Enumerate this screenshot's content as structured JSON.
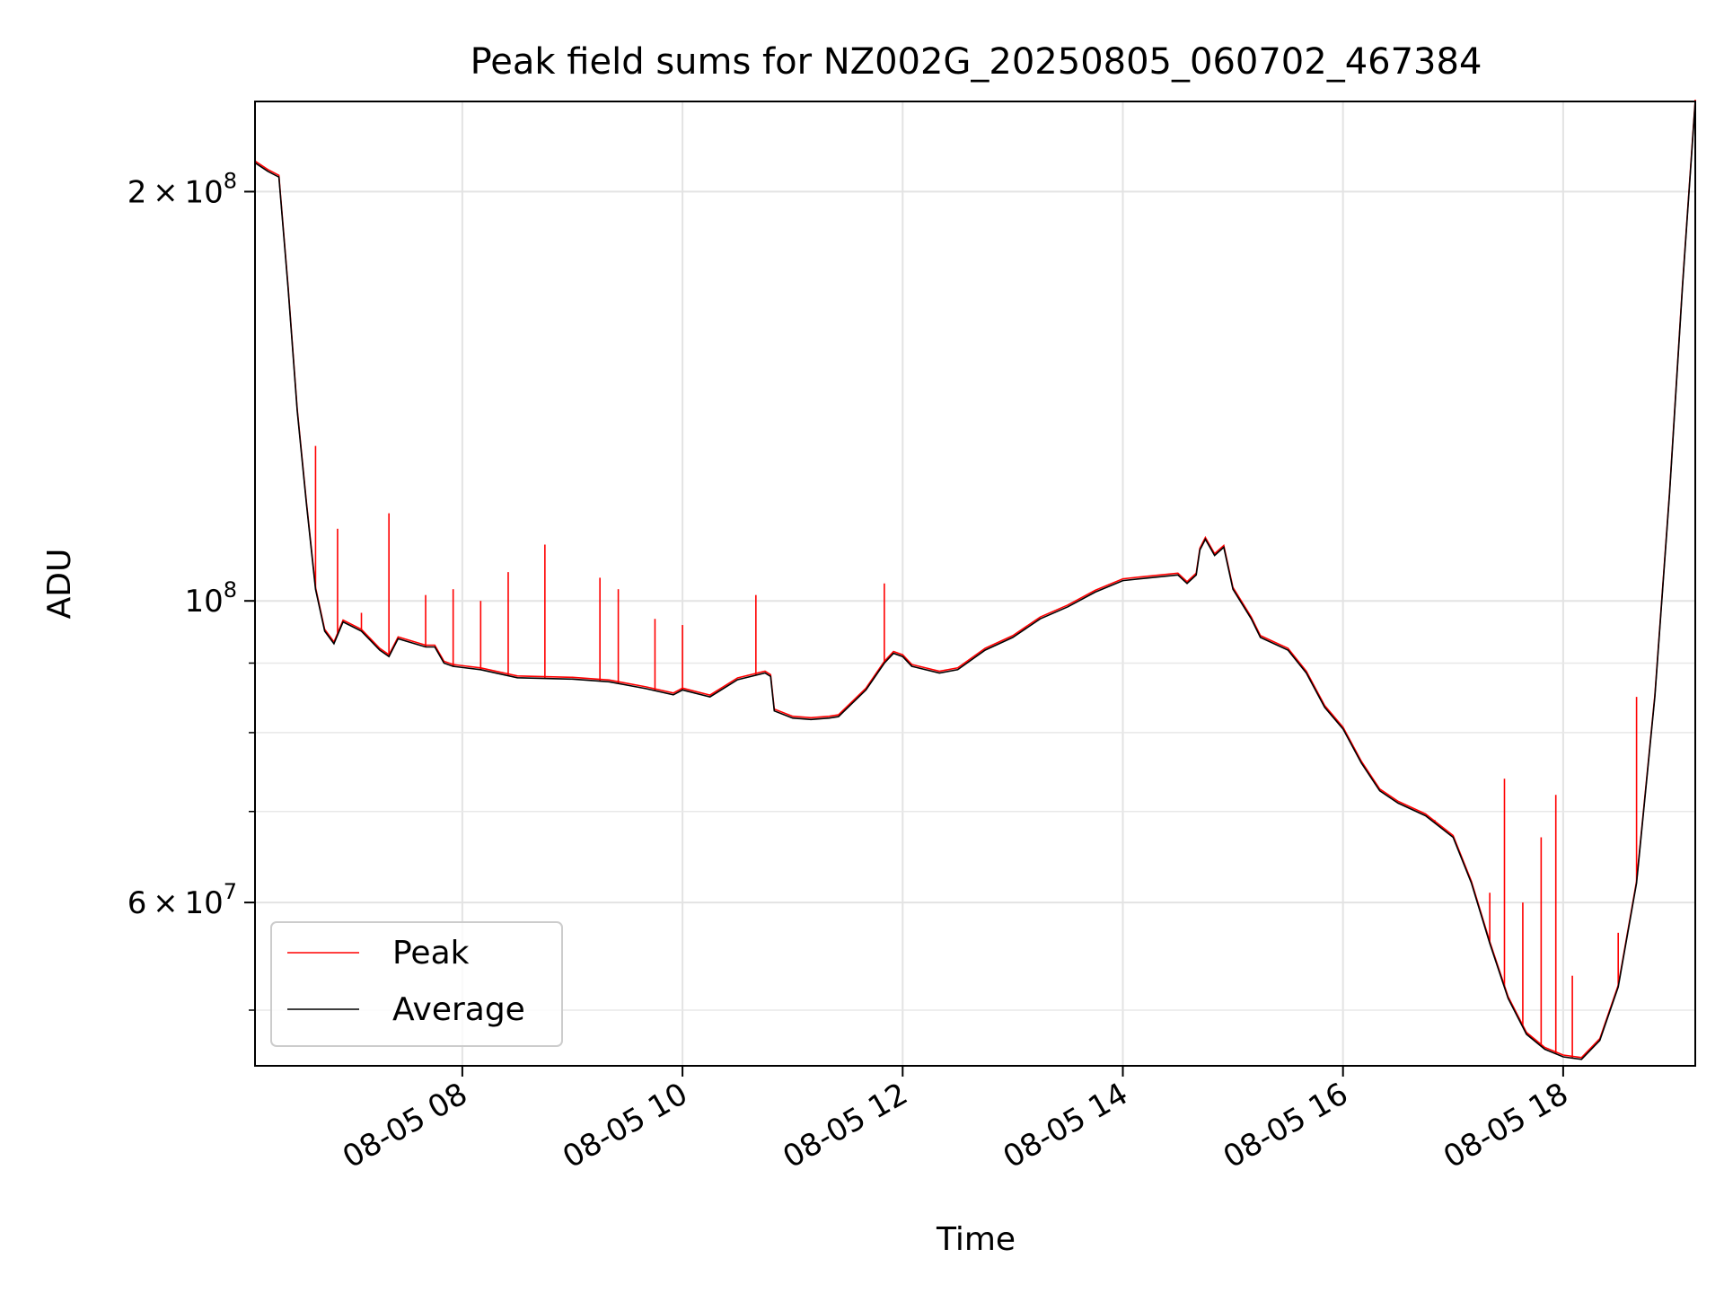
{
  "chart_data": {
    "type": "line",
    "title": "Peak field sums for NZ002G_20250805_060702_467384",
    "xlabel": "Time",
    "ylabel": "ADU",
    "y_scale": "log",
    "grid": true,
    "legend_position": "lower-left",
    "xlim": [
      "2025-08-05 06:07",
      "2025-08-05 19:12"
    ],
    "ylim": [
      45500000,
      233000000
    ],
    "x_ticks": [
      {
        "t": "2025-08-05 08:00",
        "label": "08-05 08"
      },
      {
        "t": "2025-08-05 10:00",
        "label": "08-05 10"
      },
      {
        "t": "2025-08-05 12:00",
        "label": "08-05 12"
      },
      {
        "t": "2025-08-05 14:00",
        "label": "08-05 14"
      },
      {
        "t": "2025-08-05 16:00",
        "label": "08-05 16"
      },
      {
        "t": "2025-08-05 18:00",
        "label": "08-05 18"
      }
    ],
    "y_major_ticks": [
      {
        "value": 60000000,
        "mantissa": "6",
        "times": "×",
        "base": "10",
        "exp": "7"
      },
      {
        "value": 100000000,
        "mantissa": "",
        "times": "",
        "base": "10",
        "exp": "8"
      },
      {
        "value": 200000000,
        "mantissa": "2",
        "times": "×",
        "base": "10",
        "exp": "8"
      }
    ],
    "y_minor_ticks": [
      50000000,
      70000000,
      80000000,
      90000000
    ],
    "series": [
      {
        "name": "Average",
        "color": "#000000",
        "points": [
          [
            "2025-08-05 06:07",
            210000000
          ],
          [
            "2025-08-05 06:14",
            207000000
          ],
          [
            "2025-08-05 06:20",
            205000000
          ],
          [
            "2025-08-05 06:25",
            170000000
          ],
          [
            "2025-08-05 06:30",
            138000000
          ],
          [
            "2025-08-05 06:35",
            118000000
          ],
          [
            "2025-08-05 06:40",
            102000000
          ],
          [
            "2025-08-05 06:45",
            95000000
          ],
          [
            "2025-08-05 06:50",
            93000000
          ],
          [
            "2025-08-05 06:55",
            96500000
          ],
          [
            "2025-08-05 07:05",
            95000000
          ],
          [
            "2025-08-05 07:10",
            93500000
          ],
          [
            "2025-08-05 07:15",
            92000000
          ],
          [
            "2025-08-05 07:20",
            91000000
          ],
          [
            "2025-08-05 07:25",
            93800000
          ],
          [
            "2025-08-05 07:40",
            92500000
          ],
          [
            "2025-08-05 07:45",
            92500000
          ],
          [
            "2025-08-05 07:50",
            90000000
          ],
          [
            "2025-08-05 07:55",
            89500000
          ],
          [
            "2025-08-05 08:10",
            89000000
          ],
          [
            "2025-08-05 08:30",
            87800000
          ],
          [
            "2025-08-05 09:00",
            87600000
          ],
          [
            "2025-08-05 09:20",
            87200000
          ],
          [
            "2025-08-05 09:40",
            86200000
          ],
          [
            "2025-08-05 09:55",
            85300000
          ],
          [
            "2025-08-05 10:00",
            86000000
          ],
          [
            "2025-08-05 10:15",
            85000000
          ],
          [
            "2025-08-05 10:30",
            87500000
          ],
          [
            "2025-08-05 10:45",
            88500000
          ],
          [
            "2025-08-05 10:48",
            88000000
          ],
          [
            "2025-08-05 10:50",
            83000000
          ],
          [
            "2025-08-05 11:00",
            82000000
          ],
          [
            "2025-08-05 11:10",
            81800000
          ],
          [
            "2025-08-05 11:20",
            82000000
          ],
          [
            "2025-08-05 11:25",
            82200000
          ],
          [
            "2025-08-05 11:40",
            86000000
          ],
          [
            "2025-08-05 11:50",
            90000000
          ],
          [
            "2025-08-05 11:55",
            91500000
          ],
          [
            "2025-08-05 12:00",
            91000000
          ],
          [
            "2025-08-05 12:05",
            89500000
          ],
          [
            "2025-08-05 12:20",
            88500000
          ],
          [
            "2025-08-05 12:30",
            89000000
          ],
          [
            "2025-08-05 12:45",
            92000000
          ],
          [
            "2025-08-05 13:00",
            94000000
          ],
          [
            "2025-08-05 13:15",
            97000000
          ],
          [
            "2025-08-05 13:30",
            99000000
          ],
          [
            "2025-08-05 13:45",
            101500000
          ],
          [
            "2025-08-05 14:00",
            103500000
          ],
          [
            "2025-08-05 14:15",
            104000000
          ],
          [
            "2025-08-05 14:30",
            104500000
          ],
          [
            "2025-08-05 14:35",
            103000000
          ],
          [
            "2025-08-05 14:40",
            104500000
          ],
          [
            "2025-08-05 14:42",
            109000000
          ],
          [
            "2025-08-05 14:45",
            111000000
          ],
          [
            "2025-08-05 14:50",
            108000000
          ],
          [
            "2025-08-05 14:55",
            109500000
          ],
          [
            "2025-08-05 15:00",
            102000000
          ],
          [
            "2025-08-05 15:10",
            97000000
          ],
          [
            "2025-08-05 15:15",
            94000000
          ],
          [
            "2025-08-05 15:30",
            92000000
          ],
          [
            "2025-08-05 15:40",
            88500000
          ],
          [
            "2025-08-05 15:50",
            83500000
          ],
          [
            "2025-08-05 16:00",
            80500000
          ],
          [
            "2025-08-05 16:10",
            76000000
          ],
          [
            "2025-08-05 16:20",
            72500000
          ],
          [
            "2025-08-05 16:30",
            71000000
          ],
          [
            "2025-08-05 16:45",
            69500000
          ],
          [
            "2025-08-05 17:00",
            67000000
          ],
          [
            "2025-08-05 17:10",
            62000000
          ],
          [
            "2025-08-05 17:20",
            56000000
          ],
          [
            "2025-08-05 17:30",
            51000000
          ],
          [
            "2025-08-05 17:40",
            48000000
          ],
          [
            "2025-08-05 17:50",
            46800000
          ],
          [
            "2025-08-05 18:00",
            46200000
          ],
          [
            "2025-08-05 18:10",
            46000000
          ],
          [
            "2025-08-05 18:20",
            47500000
          ],
          [
            "2025-08-05 18:30",
            52000000
          ],
          [
            "2025-08-05 18:40",
            62000000
          ],
          [
            "2025-08-05 18:50",
            85000000
          ],
          [
            "2025-08-05 18:58",
            120000000
          ],
          [
            "2025-08-05 19:05",
            170000000
          ],
          [
            "2025-08-05 19:12",
            233000000
          ]
        ]
      },
      {
        "name": "Peak",
        "color": "#ff0000",
        "spikes": [
          [
            "2025-08-05 06:40",
            130000000
          ],
          [
            "2025-08-05 06:52",
            113000000
          ],
          [
            "2025-08-05 07:05",
            98000000
          ],
          [
            "2025-08-05 07:20",
            116000000
          ],
          [
            "2025-08-05 07:40",
            101000000
          ],
          [
            "2025-08-05 07:55",
            102000000
          ],
          [
            "2025-08-05 08:10",
            100000000
          ],
          [
            "2025-08-05 08:25",
            105000000
          ],
          [
            "2025-08-05 08:45",
            110000000
          ],
          [
            "2025-08-05 09:15",
            104000000
          ],
          [
            "2025-08-05 09:25",
            102000000
          ],
          [
            "2025-08-05 09:45",
            97000000
          ],
          [
            "2025-08-05 10:00",
            96000000
          ],
          [
            "2025-08-05 10:40",
            101000000
          ],
          [
            "2025-08-05 11:50",
            103000000
          ],
          [
            "2025-08-05 16:50",
            69000000
          ],
          [
            "2025-08-05 17:20",
            61000000
          ],
          [
            "2025-08-05 17:28",
            74000000
          ],
          [
            "2025-08-05 17:38",
            60000000
          ],
          [
            "2025-08-05 17:48",
            67000000
          ],
          [
            "2025-08-05 17:56",
            72000000
          ],
          [
            "2025-08-05 18:05",
            53000000
          ],
          [
            "2025-08-05 18:30",
            57000000
          ],
          [
            "2025-08-05 18:40",
            85000000
          ]
        ]
      }
    ]
  }
}
